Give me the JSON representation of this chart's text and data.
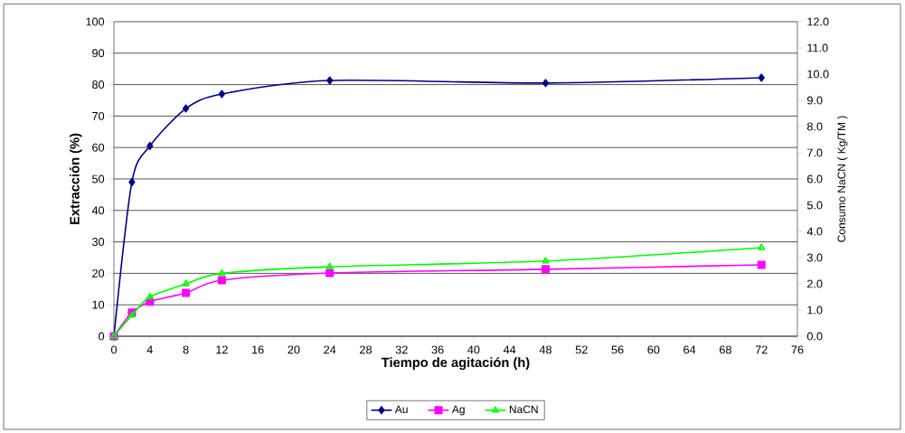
{
  "chart_data": {
    "type": "line",
    "xlabel": "Tiempo de agitación (h)",
    "ylabel": "Extracción (%)",
    "y2label": "Consumo NaCN ( Kg/TM )",
    "x": [
      0,
      2,
      4,
      8,
      12,
      24,
      48,
      72
    ],
    "series": [
      {
        "name": "Au",
        "color": "#000080",
        "marker": "diamond",
        "values": [
          0,
          49,
          60.5,
          72.4,
          77,
          81.3,
          80.5,
          82.2
        ]
      },
      {
        "name": "Ag",
        "color": "#ff00ff",
        "marker": "square",
        "values": [
          0,
          7.5,
          11,
          13.8,
          17.8,
          20.1,
          21.3,
          22.7
        ]
      },
      {
        "name": "NaCN",
        "color": "#00ff00",
        "marker": "triangle",
        "axis": "y2",
        "values": [
          0,
          0.8,
          1.5,
          2.0,
          2.4,
          2.65,
          2.87,
          3.38
        ]
      }
    ],
    "xlim": [
      0,
      76
    ],
    "xticks": [
      0,
      4,
      8,
      12,
      16,
      20,
      24,
      28,
      32,
      36,
      40,
      44,
      48,
      52,
      56,
      60,
      64,
      68,
      72,
      76
    ],
    "ylim": [
      0,
      100
    ],
    "yticks": [
      0,
      10,
      20,
      30,
      40,
      50,
      60,
      70,
      80,
      90,
      100
    ],
    "y2lim": [
      0,
      12
    ],
    "y2ticks": [
      {
        "value": 0,
        "label": "0.0"
      },
      {
        "value": 1,
        "label": "1.0"
      },
      {
        "value": 2,
        "label": "2.0"
      },
      {
        "value": 3,
        "label": "3.0"
      },
      {
        "value": 4,
        "label": "4.0"
      },
      {
        "value": 5,
        "label": "5.0"
      },
      {
        "value": 6,
        "label": "6.0"
      },
      {
        "value": 7,
        "label": "7.0"
      },
      {
        "value": 8,
        "label": "8.0"
      },
      {
        "value": 9,
        "label": "9.0"
      },
      {
        "value": 10,
        "label": "10.0"
      },
      {
        "value": 11,
        "label": "11.0"
      },
      {
        "value": 12,
        "label": "12.0"
      }
    ],
    "grid": "y",
    "legend": "bottom",
    "line_style": "solid"
  }
}
